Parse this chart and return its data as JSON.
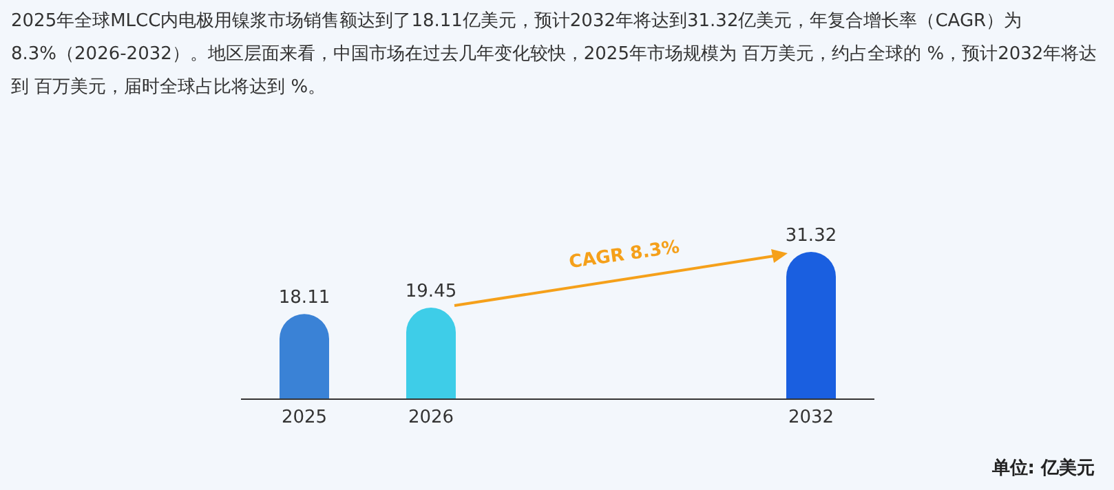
{
  "chart_data": {
    "type": "bar",
    "title": "2025年全球MLCC内电极用镍浆市场销售额达到了18.11亿美元，预计2032年将达到31.32亿美元，年复合增长率（CAGR）为8.3%（2026-2032）。地区层面来看，中国市场在过去几年变化较快，2025年市场规模为 百万美元，约占全球的 %，预计2032年将达到 百万美元，届时全球占比将达到 %。",
    "categories": [
      "2025",
      "2026",
      null,
      null,
      "2032"
    ],
    "values": [
      18.11,
      19.45,
      null,
      null,
      31.32
    ],
    "colors": [
      "#3a82d6",
      "#3ecde8",
      "#ffffff",
      "#ffffff",
      "#1a5fe0"
    ],
    "data_labels": true,
    "annotations": [
      "CAGR 8.3%",
      "单位: 亿美元"
    ]
  }
}
